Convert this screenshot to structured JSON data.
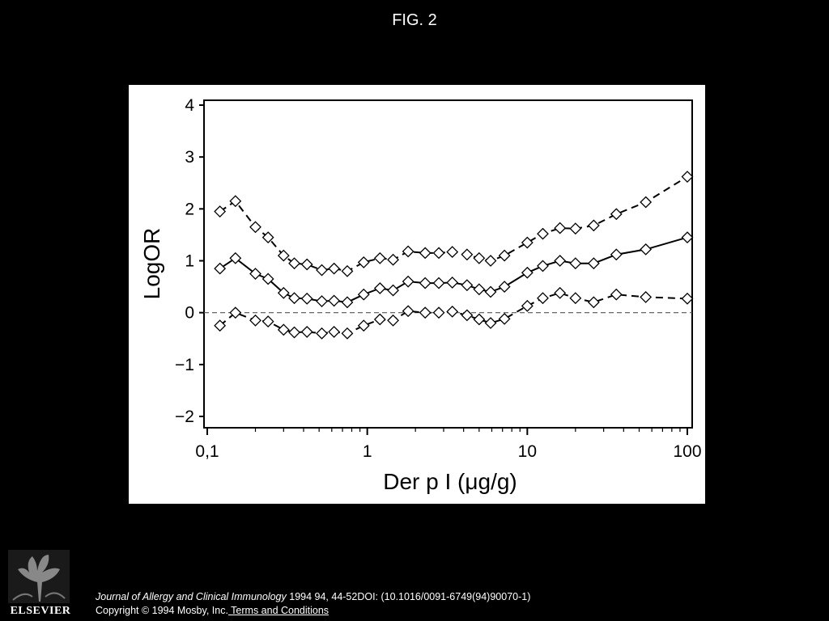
{
  "header": {
    "title": "FIG. 2"
  },
  "chart_data": {
    "type": "line",
    "xlabel": "Der p I (μg/g)",
    "ylabel": "LogOR",
    "xscale": "log",
    "xlim": [
      0.1,
      100
    ],
    "ylim": [
      -2,
      4
    ],
    "x_ticks": [
      "0,1",
      "1",
      "10",
      "100"
    ],
    "y_ticks": [
      "−2",
      "−1",
      "0",
      "1",
      "2",
      "3",
      "4"
    ],
    "y_tick_values": [
      -2,
      -1,
      0,
      1,
      2,
      3,
      4
    ],
    "x_tick_values": [
      0.1,
      1,
      10,
      100
    ],
    "reference_line": {
      "y": 0,
      "style": "dashed"
    },
    "x": [
      0.12,
      0.15,
      0.2,
      0.24,
      0.3,
      0.35,
      0.42,
      0.52,
      0.62,
      0.75,
      0.95,
      1.2,
      1.45,
      1.8,
      2.3,
      2.8,
      3.4,
      4.2,
      5.0,
      5.9,
      7.2,
      10,
      12.5,
      16,
      20,
      26,
      36,
      55,
      100
    ],
    "series": [
      {
        "role": "upper",
        "style": "dashed",
        "values": [
          1.95,
          2.15,
          1.65,
          1.45,
          1.1,
          0.95,
          0.93,
          0.82,
          0.85,
          0.8,
          0.97,
          1.05,
          1.02,
          1.18,
          1.15,
          1.15,
          1.17,
          1.12,
          1.05,
          1.0,
          1.1,
          1.35,
          1.52,
          1.63,
          1.62,
          1.68,
          1.9,
          2.13,
          2.62
        ]
      },
      {
        "role": "estimate",
        "style": "solid",
        "values": [
          0.85,
          1.05,
          0.75,
          0.65,
          0.38,
          0.28,
          0.27,
          0.22,
          0.23,
          0.2,
          0.35,
          0.47,
          0.43,
          0.6,
          0.57,
          0.57,
          0.58,
          0.53,
          0.45,
          0.4,
          0.5,
          0.77,
          0.9,
          1.0,
          0.95,
          0.95,
          1.12,
          1.22,
          1.45
        ]
      },
      {
        "role": "lower",
        "style": "dashed",
        "values": [
          -0.25,
          0.0,
          -0.15,
          -0.17,
          -0.33,
          -0.38,
          -0.37,
          -0.4,
          -0.37,
          -0.4,
          -0.25,
          -0.13,
          -0.15,
          0.03,
          0.0,
          0.0,
          0.02,
          -0.05,
          -0.13,
          -0.2,
          -0.12,
          0.13,
          0.28,
          0.38,
          0.28,
          0.2,
          0.35,
          0.3,
          0.27
        ]
      }
    ]
  },
  "footer": {
    "journal": "Journal of Allergy and Clinical Immunology",
    "citation": " 1994 94, 44-52DOI: (10.1016/0091-6749(94)90070-1)",
    "copyright": "Copyright © 1994 Mosby, Inc.",
    "terms_link": " Terms and Conditions",
    "publisher_logo": "ELSEVIER"
  }
}
